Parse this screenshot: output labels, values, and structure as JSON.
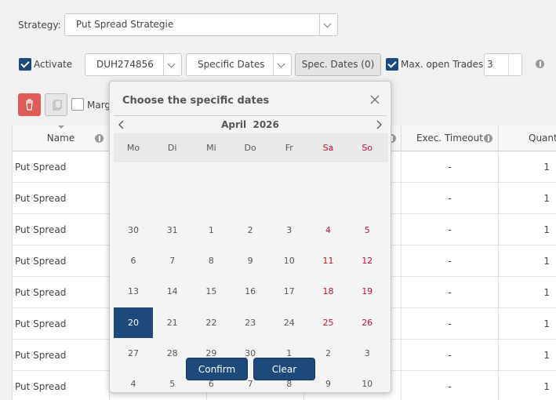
{
  "toolbar": {
    "strategy_label": "Strategy:",
    "strategy_value": "Put Spread Strategie",
    "activate_label": "Activate",
    "account_value": "DUH274856",
    "mode_value": "Specific Dates",
    "spec_dates_button": "Spec. Dates (0)",
    "max_trades_label": "Max. open Trades",
    "max_trades_value": "3",
    "margin_label": "Marg"
  },
  "table": {
    "headers": [
      "Name",
      "Exec. Timeout",
      "Quanti"
    ],
    "rows": [
      {
        "name": "Put Spread",
        "exec_timeout": "-",
        "quantity": "1"
      },
      {
        "name": "Put Spread",
        "exec_timeout": "-",
        "quantity": "1"
      },
      {
        "name": "Put Spread",
        "exec_timeout": "-",
        "quantity": "1"
      },
      {
        "name": "Put Spread",
        "exec_timeout": "-",
        "quantity": "1"
      },
      {
        "name": "Put Spread",
        "exec_timeout": "-",
        "quantity": "1"
      },
      {
        "name": "Put Spread",
        "exec_timeout": "-",
        "quantity": "1"
      },
      {
        "name": "Put Spread",
        "exec_timeout": "-",
        "quantity": "1"
      },
      {
        "name": "Put Spread",
        "exec_timeout": "-",
        "quantity": "1"
      }
    ]
  },
  "dialog": {
    "title": "Choose the specific dates",
    "month": "April",
    "year": "2026",
    "weekdays": [
      "Mo",
      "Di",
      "Mi",
      "Do",
      "Fr",
      "Sa",
      "So"
    ],
    "weeks": [
      [
        "30",
        "31",
        "1",
        "2",
        "3",
        "4",
        "5"
      ],
      [
        "6",
        "7",
        "8",
        "9",
        "10",
        "11",
        "12"
      ],
      [
        "13",
        "14",
        "15",
        "16",
        "17",
        "18",
        "19"
      ],
      [
        "20",
        "21",
        "22",
        "23",
        "24",
        "25",
        "26"
      ],
      [
        "27",
        "28",
        "29",
        "30",
        "1",
        "2",
        "3"
      ],
      [
        "4",
        "5",
        "6",
        "7",
        "8",
        "9",
        "10"
      ]
    ],
    "selected": "20",
    "buttons": {
      "confirm": "Confirm",
      "clear": "Clear"
    }
  }
}
